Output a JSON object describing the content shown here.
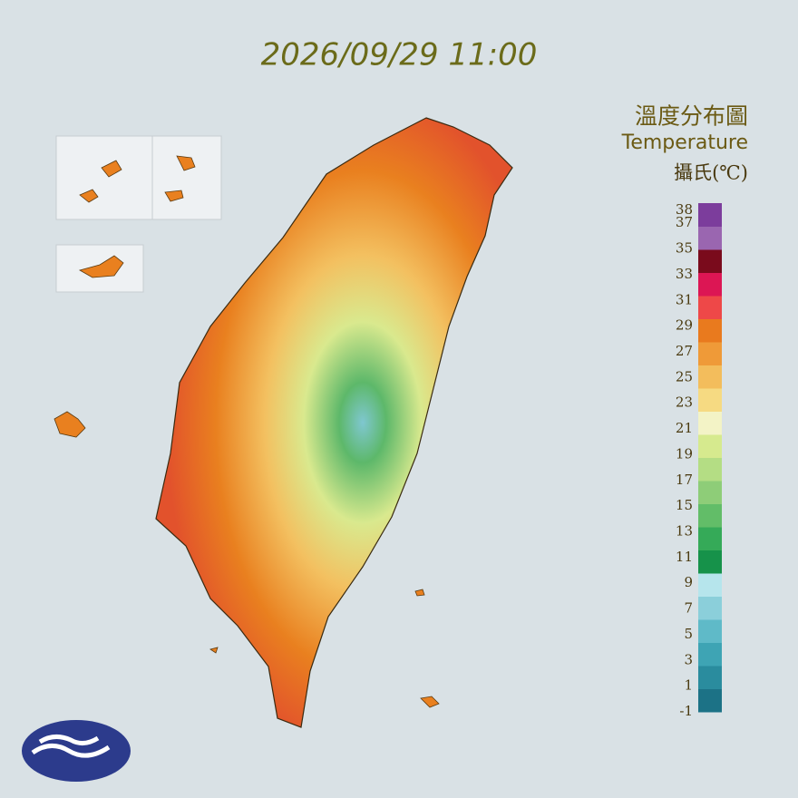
{
  "chart_data": {
    "type": "map",
    "title": "2026/09/29 11:00",
    "legend": {
      "title": "溫度分布圖",
      "subtitle": "Temperature",
      "unit": "攝氏(℃)",
      "lim": [
        -1,
        38
      ],
      "ticks": [
        38,
        37,
        35,
        33,
        31,
        29,
        27,
        25,
        23,
        21,
        19,
        17,
        15,
        13,
        11,
        9,
        7,
        5,
        3,
        1,
        -1
      ],
      "colors": [
        "#1c7286",
        "#2a8c9e",
        "#3ea4b4",
        "#5fbac8",
        "#8bcfda",
        "#b6e5ec",
        "#16924a",
        "#35aa58",
        "#62bd68",
        "#8ecd78",
        "#b4dd84",
        "#d6ea8e",
        "#f3f3c6",
        "#f6da82",
        "#f3bd5c",
        "#ef9a38",
        "#e97a1e",
        "#ee4848",
        "#dc1654",
        "#7a0b1c",
        "#9a66b0",
        "#7c3d9c"
      ]
    }
  }
}
